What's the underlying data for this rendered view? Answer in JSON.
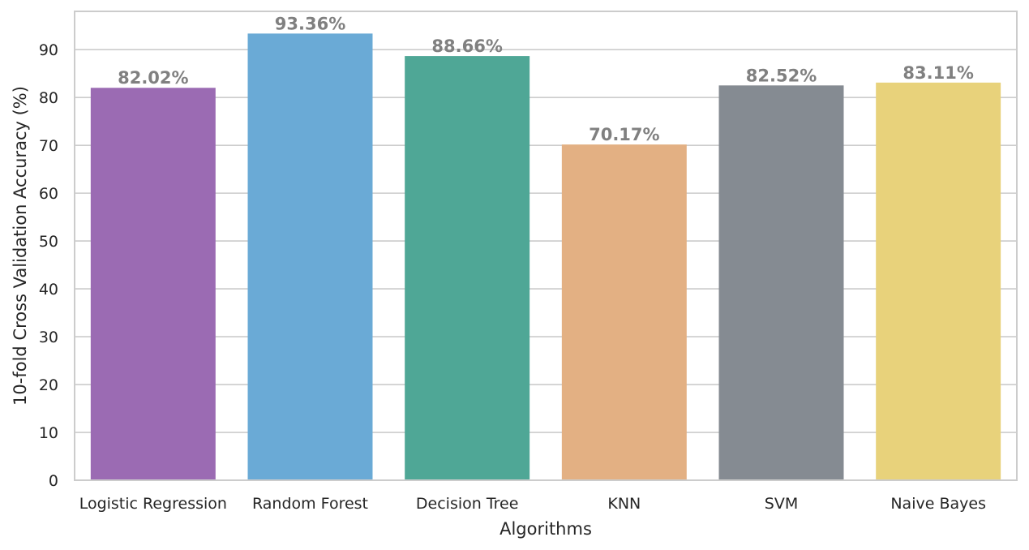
{
  "chart_data": {
    "type": "bar",
    "categories": [
      "Logistic Regression",
      "Random Forest",
      "Decision Tree",
      "KNN",
      "SVM",
      "Naive Bayes"
    ],
    "values": [
      82.02,
      93.36,
      88.66,
      70.17,
      82.52,
      83.11
    ],
    "data_labels": [
      "82.02%",
      "93.36%",
      "88.66%",
      "70.17%",
      "82.52%",
      "83.11%"
    ],
    "colors": [
      "#9b6bb3",
      "#6aaad6",
      "#4fa796",
      "#e3b083",
      "#858b92",
      "#e8d27b"
    ],
    "title": "",
    "xlabel": "Algorithms",
    "ylabel": "10-fold Cross Validation Accuracy (%)",
    "ylim": [
      0,
      98
    ],
    "yticks": [
      0,
      10,
      20,
      30,
      40,
      50,
      60,
      70,
      80,
      90
    ],
    "grid": true,
    "legend": "none"
  }
}
